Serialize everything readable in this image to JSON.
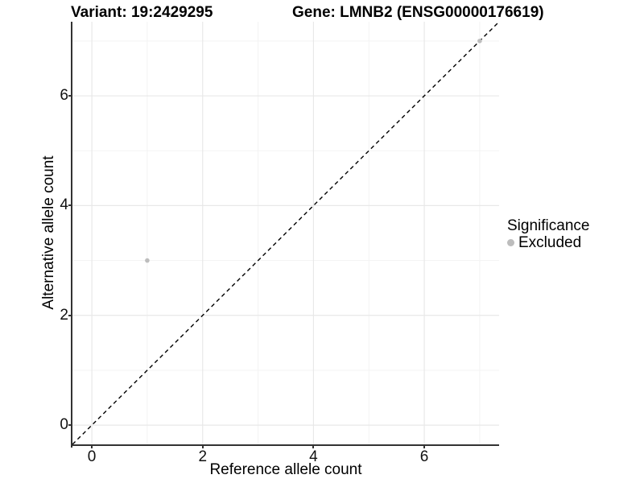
{
  "title": {
    "variant": "Variant: 19:2429295",
    "gene": "Gene: LMNB2 (ENSG00000176619)"
  },
  "axes": {
    "x_label": "Reference allele count",
    "y_label": "Alternative allele count"
  },
  "legend": {
    "title": "Significance",
    "items": [
      {
        "label": "Excluded",
        "color": "#bdbdbd"
      }
    ]
  },
  "colors": {
    "background": "#ffffff",
    "axis_line": "#333333",
    "grid_major": "#e8e8e8",
    "grid_minor": "#f3f3f3",
    "reference_line": "#000000",
    "point_excluded": "#bdbdbd",
    "text": "#000000"
  },
  "chart_data": {
    "type": "scatter",
    "title": "Variant: 19:2429295    Gene: LMNB2 (ENSG00000176619)",
    "xlabel": "Reference allele count",
    "ylabel": "Alternative allele count",
    "xlim": [
      -0.35,
      7.35
    ],
    "ylim": [
      -0.35,
      7.35
    ],
    "x_ticks": [
      0,
      2,
      4,
      6
    ],
    "y_ticks": [
      0,
      2,
      4,
      6
    ],
    "x_minor_ticks": [
      1,
      3,
      5,
      7
    ],
    "y_minor_ticks": [
      1,
      3,
      5,
      7
    ],
    "grid": true,
    "legend_position": "right",
    "reference_line": {
      "kind": "identity",
      "slope": 1,
      "intercept": 0,
      "style": "dashed",
      "color": "#000000"
    },
    "series": [
      {
        "name": "Excluded",
        "color": "#bdbdbd",
        "point_radius": 2.8,
        "points": [
          {
            "x": 1,
            "y": 3
          },
          {
            "x": 7,
            "y": 7
          }
        ]
      }
    ]
  }
}
